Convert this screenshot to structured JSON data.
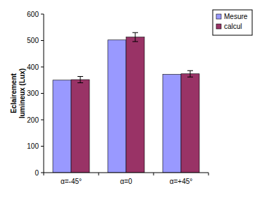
{
  "chart_data": {
    "type": "bar",
    "y_label": "Eclairement lumineux (Lux)",
    "categories": [
      "α=-45°",
      "α=0",
      "α=+45°"
    ],
    "series": [
      {
        "name": "Mesure",
        "color": "#9999ff",
        "values": [
          350,
          502,
          372
        ]
      },
      {
        "name": "calcul",
        "color": "#993366",
        "values": [
          352,
          513,
          374
        ],
        "errors": [
          12,
          17,
          12
        ]
      }
    ],
    "ylim": [
      0,
      600
    ],
    "yticks": [
      0,
      100,
      200,
      300,
      400,
      500,
      600
    ],
    "grid": false,
    "legend": "top-right"
  }
}
